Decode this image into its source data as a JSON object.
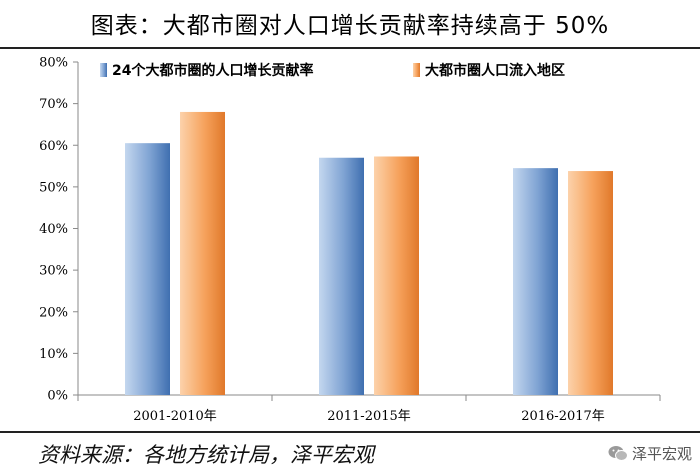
{
  "title": "图表：大都市圈对人口增长贡献率持续高于 50%",
  "source": "资料来源：各地方统计局，泽平宏观",
  "watermark": "泽平宏观",
  "colors": {
    "series1_light": "#a9c4e6",
    "series1_dark": "#3f6fb0",
    "series2_light": "#fbc592",
    "series2_dark": "#e0782a"
  },
  "chart_data": {
    "type": "bar",
    "categories": [
      "2001-2010年",
      "2011-2015年",
      "2016-2017年"
    ],
    "series": [
      {
        "name": "24个大都市圈的人口增长贡献率",
        "values": [
          60.5,
          57.0,
          54.5
        ]
      },
      {
        "name": "大都市圈人口流入地区",
        "values": [
          68.0,
          57.3,
          53.8
        ]
      }
    ],
    "ylim": [
      0,
      80
    ],
    "ytick_step": 10,
    "ytick_labels": [
      "0%",
      "10%",
      "20%",
      "30%",
      "40%",
      "50%",
      "60%",
      "70%",
      "80%"
    ],
    "xlabel": "",
    "ylabel": "",
    "grid": false,
    "legend": "top"
  }
}
